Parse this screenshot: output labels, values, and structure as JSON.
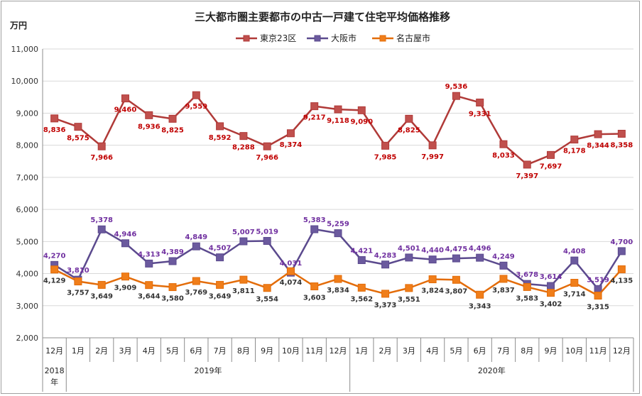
{
  "chart_data": {
    "type": "line",
    "title": "三大都市圏主要都市の中古一戸建て住宅平均価格推移",
    "ylabel": "万円",
    "ylim": [
      2000,
      11000
    ],
    "ytick_step": 1000,
    "ytick_labels": [
      "2,000",
      "3,000",
      "4,000",
      "5,000",
      "6,000",
      "7,000",
      "8,000",
      "9,000",
      "10,000",
      "11,000"
    ],
    "categories": [
      "12月",
      "1月",
      "2月",
      "3月",
      "4月",
      "5月",
      "6月",
      "7月",
      "8月",
      "9月",
      "10月",
      "11月",
      "12月",
      "1月",
      "2月",
      "3月",
      "4月",
      "5月",
      "6月",
      "7月",
      "8月",
      "9月",
      "10月",
      "11月",
      "12月"
    ],
    "year_groups": [
      {
        "label": "2018\n年",
        "start": 0,
        "end": 0
      },
      {
        "label": "2019年",
        "start": 1,
        "end": 12
      },
      {
        "label": "2020年",
        "start": 13,
        "end": 24
      }
    ],
    "legend_position": "top-center",
    "series": [
      {
        "name": "東京23区",
        "color": "#c0504d",
        "line_color": "#b03a38",
        "marker": "square",
        "values": [
          8836,
          8575,
          7966,
          9460,
          8936,
          8825,
          9559,
          8592,
          8288,
          7966,
          8374,
          9217,
          9118,
          9090,
          7985,
          8825,
          7997,
          9536,
          9331,
          8033,
          7397,
          7697,
          8178,
          8344,
          8358
        ],
        "labels": [
          "8,836",
          "8,575",
          "7,966",
          "9,460",
          "8,936",
          "8,825",
          "9,559",
          "8,592",
          "8,288",
          "7,966",
          "8,374",
          "9,217",
          "9,118",
          "9,090",
          "7,985",
          "8,825",
          "7,997",
          "9,536",
          "9,331",
          "8,033",
          "7,397",
          "7,697",
          "8,178",
          "8,344",
          "8,358"
        ],
        "label_pos": [
          "below",
          "below",
          "below",
          "below",
          "below",
          "below",
          "below",
          "below",
          "below",
          "below",
          "below",
          "below",
          "below",
          "below",
          "below",
          "below",
          "below",
          "above",
          "below",
          "below",
          "below",
          "below",
          "below",
          "below",
          "below"
        ],
        "label_color": "#c00000"
      },
      {
        "name": "大阪市",
        "color": "#6b5a9e",
        "line_color": "#5b4a8e",
        "marker": "square",
        "values": [
          4270,
          3810,
          5378,
          4946,
          4313,
          4389,
          4849,
          4507,
          5007,
          5019,
          4031,
          5383,
          5259,
          4421,
          4283,
          4501,
          4440,
          4475,
          4496,
          4249,
          3678,
          3614,
          4408,
          3519,
          4700
        ],
        "labels": [
          "4,270",
          "3,810",
          "5,378",
          "4,946",
          "4,313",
          "4,389",
          "4,849",
          "4,507",
          "5,007",
          "5,019",
          "4,031",
          "5,383",
          "5,259",
          "4,421",
          "4,283",
          "4,501",
          "4,440",
          "4,475",
          "4,496",
          "4,249",
          "3,678",
          "3,614",
          "4,408",
          "3,519",
          "4,700"
        ],
        "label_pos": [
          "above",
          "above",
          "above",
          "above",
          "above",
          "above",
          "above",
          "above",
          "above",
          "above",
          "above",
          "above",
          "above",
          "above",
          "above",
          "above",
          "above",
          "above",
          "above",
          "above",
          "above",
          "above",
          "above",
          "above",
          "above"
        ],
        "label_color": "#7030a0"
      },
      {
        "name": "名古屋市",
        "color": "#f07e1a",
        "line_color": "#e36c09",
        "marker": "square",
        "values": [
          4129,
          3757,
          3649,
          3909,
          3644,
          3580,
          3769,
          3649,
          3811,
          3554,
          4074,
          3603,
          3834,
          3562,
          3373,
          3551,
          3824,
          3807,
          3343,
          3837,
          3583,
          3402,
          3714,
          3315,
          4135
        ],
        "labels": [
          "4,129",
          "3,757",
          "3,649",
          "3,909",
          "3,644",
          "3,580",
          "3,769",
          "3,649",
          "3,811",
          "3,554",
          "4,074",
          "3,603",
          "3,834",
          "3,562",
          "3,373",
          "3,551",
          "3,824",
          "3,807",
          "3,343",
          "3,837",
          "3,583",
          "3,402",
          "3,714",
          "3,315",
          "4,135"
        ],
        "label_pos": [
          "below",
          "below",
          "below",
          "below",
          "below",
          "below",
          "below",
          "below",
          "below",
          "below",
          "below",
          "below",
          "below",
          "below",
          "below",
          "below",
          "below",
          "below",
          "below",
          "below",
          "below",
          "below",
          "below",
          "below",
          "below"
        ],
        "label_color": "#333333"
      }
    ]
  }
}
